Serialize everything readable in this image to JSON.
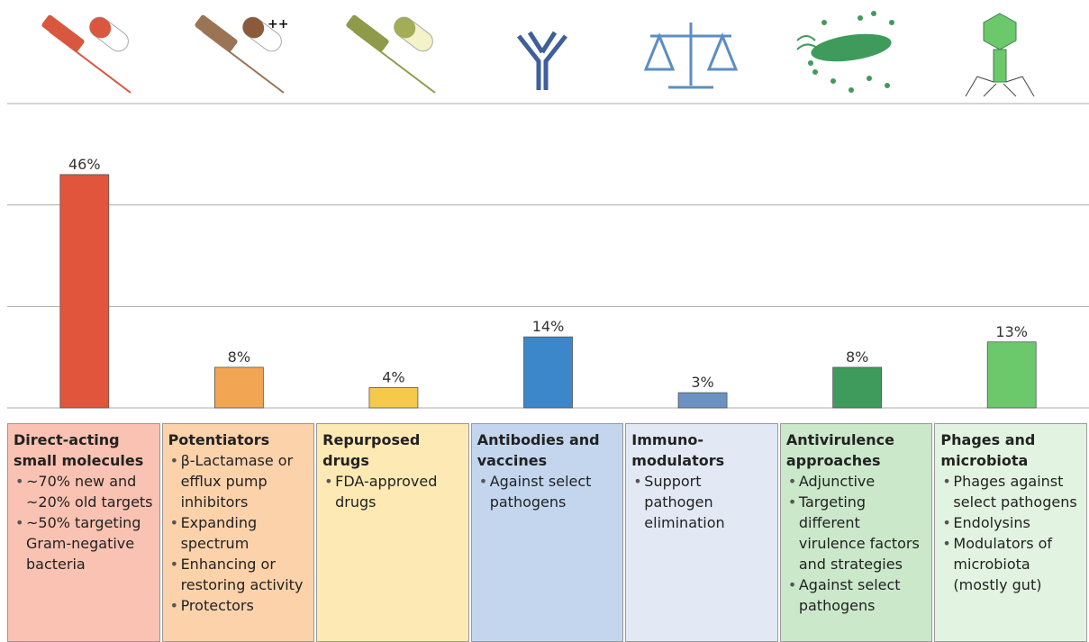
{
  "chart_data": {
    "type": "bar",
    "categories": [
      "Direct-acting small molecules",
      "Potentiators",
      "Repurposed drugs",
      "Antibodies and vaccines",
      "Immuno-modulators",
      "Antivirulence approaches",
      "Phages and microbiota"
    ],
    "values": [
      46,
      8,
      4,
      14,
      3,
      8,
      13
    ],
    "value_labels": [
      "46%",
      "8%",
      "4%",
      "14%",
      "3%",
      "8%",
      "13%"
    ],
    "colors": [
      "#e0553b",
      "#f2a553",
      "#f5c94a",
      "#3b87c9",
      "#6b91c2",
      "#3f9b5c",
      "#6cc96b"
    ],
    "box_colors": [
      "#f9c2b2",
      "#fcd2ab",
      "#fde9b3",
      "#c3d6ee",
      "#e2e9f5",
      "#cbe8cb",
      "#e2f4e1"
    ],
    "descriptions": [
      [
        "~70% new and ~20% old targets",
        "~50% targeting Gram-negative bacteria"
      ],
      [
        "β-Lactamase or efflux pump inhibitors",
        "Expanding spectrum",
        "Enhancing or restoring activity",
        "Protectors"
      ],
      [
        "FDA-approved drugs"
      ],
      [
        "Against select pathogens"
      ],
      [
        "Support pathogen elimination"
      ],
      [
        "Adjunctive",
        "Targeting different virulence factors and strategies",
        "Against select pathogens"
      ],
      [
        "Phages against select pathogens",
        "Endolysins",
        "Modulators of microbiota (mostly gut)"
      ]
    ],
    "annotations": [
      "++"
    ],
    "ylim": [
      0,
      60
    ],
    "yticks": [
      0,
      20,
      40,
      60
    ],
    "grid": true
  }
}
